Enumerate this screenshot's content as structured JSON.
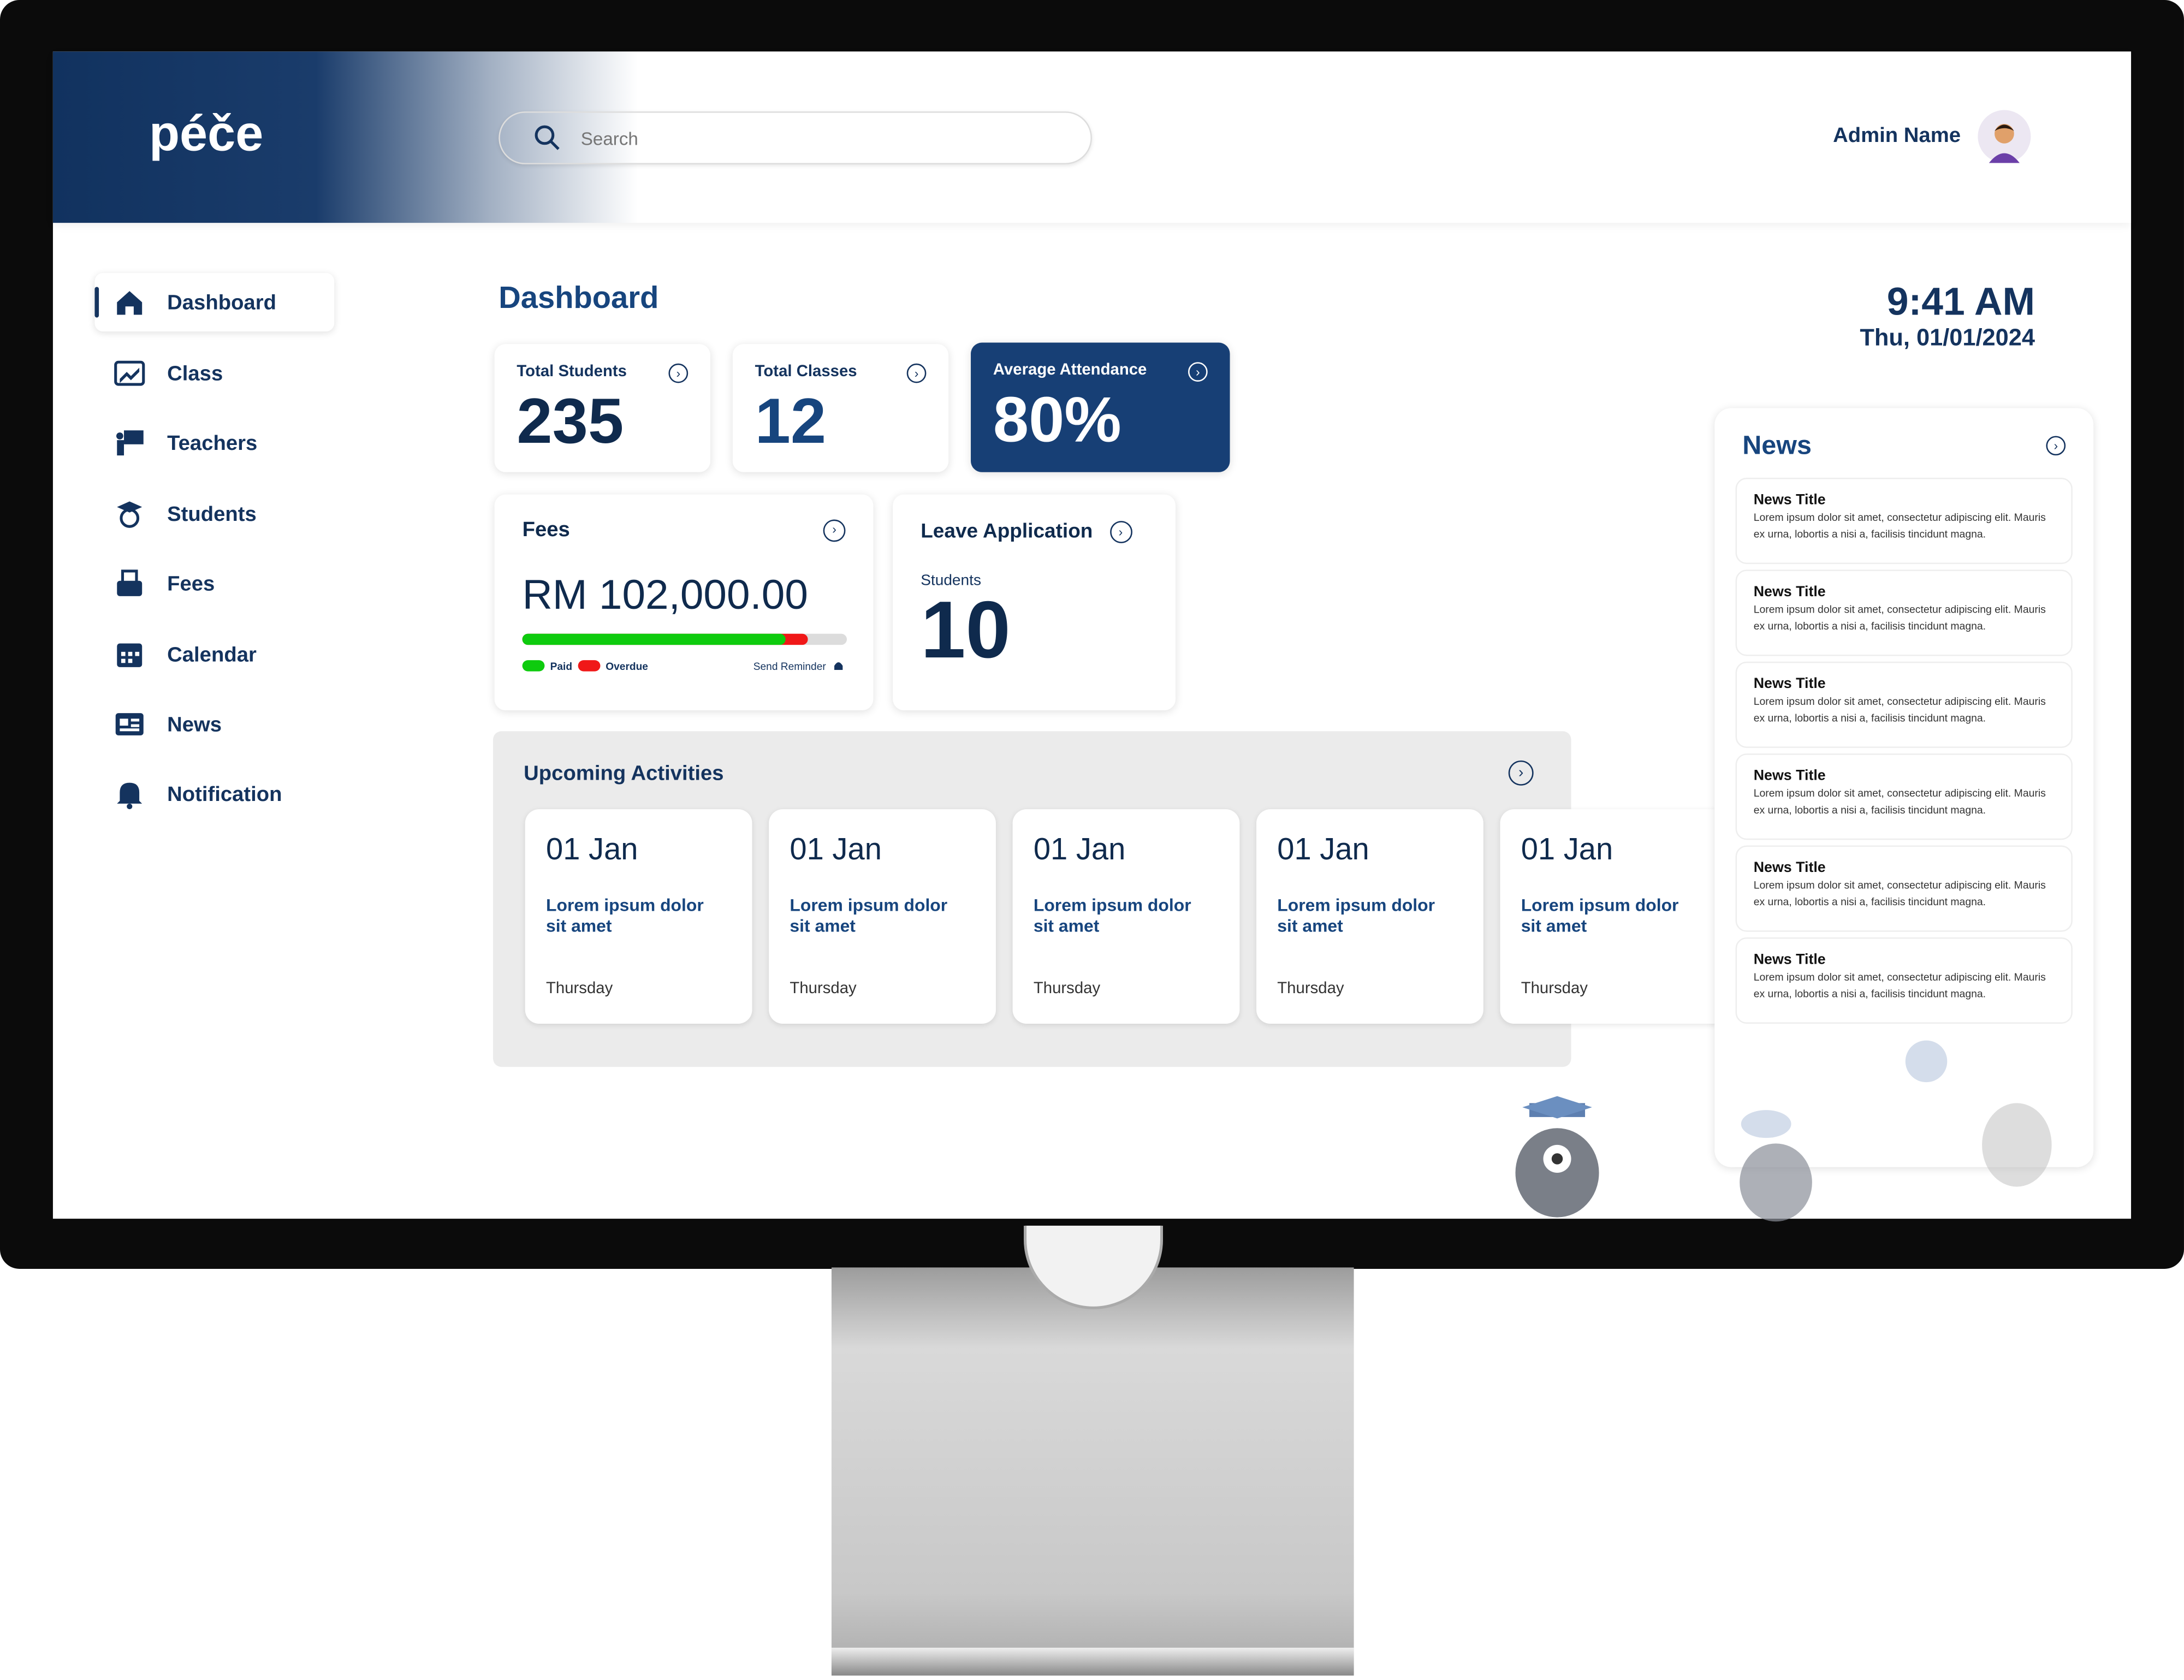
{
  "app": {
    "logo": "péče"
  },
  "header": {
    "search_placeholder": "Search",
    "admin_name": "Admin Name"
  },
  "sidebar": {
    "items": [
      {
        "label": "Dashboard",
        "icon": "home-icon",
        "active": true
      },
      {
        "label": "Class",
        "icon": "chart-icon"
      },
      {
        "label": "Teachers",
        "icon": "teacher-board-icon"
      },
      {
        "label": "Students",
        "icon": "graduate-icon"
      },
      {
        "label": "Fees",
        "icon": "money-box-icon"
      },
      {
        "label": "Calendar",
        "icon": "calendar-icon"
      },
      {
        "label": "News",
        "icon": "newspaper-icon"
      },
      {
        "label": "Notification",
        "icon": "bell-icon"
      }
    ]
  },
  "main": {
    "title": "Dashboard",
    "stats": [
      {
        "label": "Total Students",
        "value": "235"
      },
      {
        "label": "Total Classes",
        "value": "12"
      },
      {
        "label": "Average Attendance",
        "value": "80%"
      }
    ],
    "fees": {
      "label": "Fees",
      "amount": "RM 102,000.00",
      "paid_fraction": 0.81,
      "overdue_fraction": 0.07,
      "legend_paid": "Paid",
      "legend_overdue": "Overdue",
      "reminder": "Send Reminder",
      "colors": {
        "paid": "#0ecb0e",
        "overdue": "#f01818",
        "remaining": "#dcdcdc"
      }
    },
    "leave": {
      "label": "Leave Application",
      "sublabel": "Students",
      "value": "10"
    },
    "activities": {
      "title": "Upcoming Activities",
      "items": [
        {
          "date": "01 Jan",
          "title": "Lorem ipsum dolor sit amet",
          "day": "Thursday"
        },
        {
          "date": "01 Jan",
          "title": "Lorem ipsum dolor sit amet",
          "day": "Thursday"
        },
        {
          "date": "01 Jan",
          "title": "Lorem ipsum dolor sit amet",
          "day": "Thursday"
        },
        {
          "date": "01 Jan",
          "title": "Lorem ipsum dolor sit amet",
          "day": "Thursday"
        },
        {
          "date": "01 Jan",
          "title": "Lorem ipsum dolor sit amet",
          "day": "Thursday"
        }
      ]
    }
  },
  "clock": {
    "time": "9:41 AM",
    "date": "Thu, 01/01/2024"
  },
  "news": {
    "title": "News",
    "items": [
      {
        "title": "News Title",
        "body": "Lorem ipsum dolor sit amet, consectetur adipiscing elit. Mauris ex urna, lobortis a nisi a, facilisis tincidunt magna."
      },
      {
        "title": "News Title",
        "body": "Lorem ipsum dolor sit amet, consectetur adipiscing elit. Mauris ex urna, lobortis a nisi a, facilisis tincidunt magna."
      },
      {
        "title": "News Title",
        "body": "Lorem ipsum dolor sit amet, consectetur adipiscing elit. Mauris ex urna, lobortis a nisi a, facilisis tincidunt magna."
      },
      {
        "title": "News Title",
        "body": "Lorem ipsum dolor sit amet, consectetur adipiscing elit. Mauris ex urna, lobortis a nisi a, facilisis tincidunt magna."
      },
      {
        "title": "News Title",
        "body": "Lorem ipsum dolor sit amet, consectetur adipiscing elit. Mauris ex urna, lobortis a nisi a, facilisis tincidunt magna."
      },
      {
        "title": "News Title",
        "body": "Lorem ipsum dolor sit amet, consectetur adipiscing elit. Mauris ex urna, lobortis a nisi a, facilisis tincidunt magna."
      }
    ]
  },
  "colors": {
    "primary": "#17457e",
    "dark": "#0f2a4d",
    "attendance_card": "#173f75"
  }
}
